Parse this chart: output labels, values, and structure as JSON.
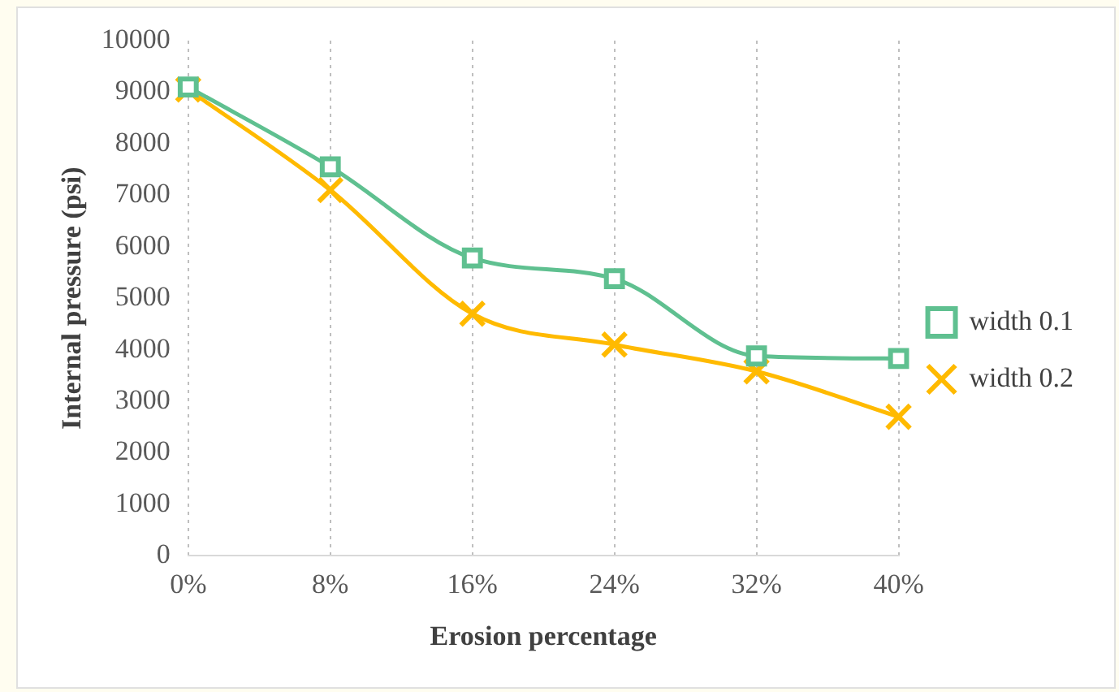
{
  "chart_data": {
    "type": "line",
    "xlabel": "Erosion percentage",
    "ylabel": "Internal pressure (psi)",
    "categories": [
      "0%",
      "8%",
      "16%",
      "24%",
      "32%",
      "40%"
    ],
    "series": [
      {
        "name": "width 0.1",
        "color": "#5fc090",
        "marker": "square",
        "values": [
          9100,
          7550,
          5780,
          5380,
          3880,
          3830
        ]
      },
      {
        "name": "width 0.2",
        "color": "#ffba00",
        "marker": "cross",
        "values": [
          9050,
          7100,
          4700,
          4100,
          3580,
          2700
        ]
      }
    ],
    "ylim": [
      0,
      10000
    ],
    "yticks": [
      0,
      1000,
      2000,
      3000,
      4000,
      5000,
      6000,
      7000,
      8000,
      9000,
      10000
    ],
    "grid": "x",
    "legend": "right"
  }
}
